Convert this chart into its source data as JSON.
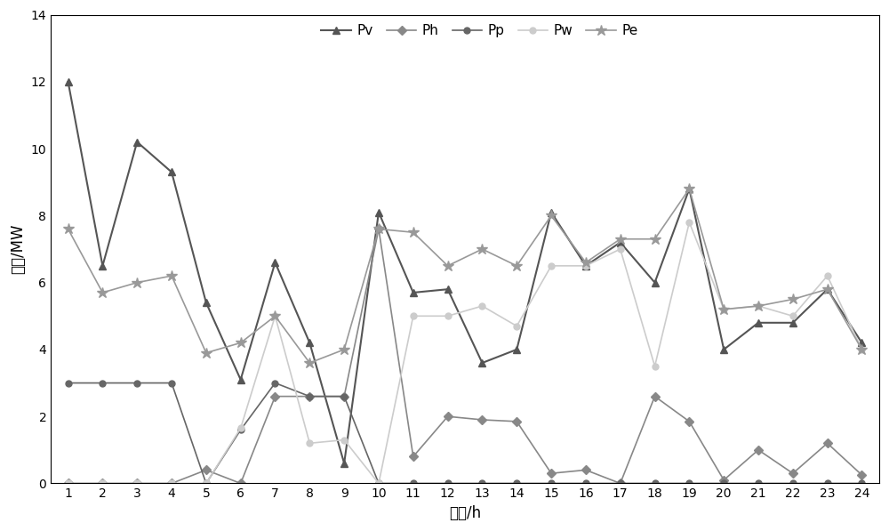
{
  "x": [
    1,
    2,
    3,
    4,
    5,
    6,
    7,
    8,
    9,
    10,
    11,
    12,
    13,
    14,
    15,
    16,
    17,
    18,
    19,
    20,
    21,
    22,
    23,
    24
  ],
  "Pv": [
    12.0,
    6.5,
    10.2,
    9.3,
    5.4,
    3.1,
    6.6,
    4.2,
    0.6,
    8.1,
    5.7,
    5.8,
    3.6,
    4.0,
    8.1,
    6.5,
    7.2,
    6.0,
    8.8,
    4.0,
    4.8,
    4.8,
    5.8,
    4.2
  ],
  "Ph": [
    0.0,
    0.0,
    0.0,
    0.0,
    0.4,
    0.0,
    2.6,
    2.6,
    2.6,
    7.6,
    0.8,
    2.0,
    1.9,
    1.85,
    0.3,
    0.4,
    0.0,
    2.6,
    1.85,
    0.1,
    1.0,
    0.3,
    1.2,
    0.25
  ],
  "Pp": [
    3.0,
    3.0,
    3.0,
    3.0,
    0.0,
    1.6,
    3.0,
    2.6,
    2.6,
    0.0,
    0.0,
    0.0,
    0.0,
    0.0,
    0.0,
    0.0,
    0.0,
    0.0,
    0.0,
    0.0,
    0.0,
    0.0,
    0.0,
    0.0
  ],
  "Pw": [
    0.0,
    0.0,
    0.0,
    0.0,
    0.0,
    1.65,
    5.0,
    1.2,
    1.3,
    0.0,
    5.0,
    5.0,
    5.3,
    4.7,
    6.5,
    6.5,
    7.0,
    3.5,
    7.8,
    5.2,
    5.3,
    5.0,
    6.2,
    4.0
  ],
  "Pe": [
    7.6,
    5.7,
    6.0,
    6.2,
    3.9,
    4.2,
    5.0,
    3.6,
    4.0,
    7.6,
    7.5,
    6.5,
    7.0,
    6.5,
    8.0,
    6.6,
    7.3,
    7.3,
    8.8,
    5.2,
    5.3,
    5.5,
    5.8,
    4.0
  ],
  "ylabel": "功率/MW",
  "xlabel": "时间/h",
  "ylim": [
    0,
    14
  ],
  "yticks": [
    0,
    2,
    4,
    6,
    8,
    10,
    12,
    14
  ],
  "series_colors": {
    "Pv": "#555555",
    "Ph": "#888888",
    "Pp": "#666666",
    "Pw": "#cccccc",
    "Pe": "#999999"
  },
  "series_markers": {
    "Pv": "^",
    "Ph": "D",
    "Pp": "o",
    "Pw": "o",
    "Pe": "*"
  },
  "series_markersizes": {
    "Pv": 6,
    "Ph": 5,
    "Pp": 5,
    "Pw": 5,
    "Pe": 9
  },
  "series_linewidths": {
    "Pv": 1.5,
    "Ph": 1.2,
    "Pp": 1.2,
    "Pw": 1.2,
    "Pe": 1.2
  },
  "series_order": [
    "Pv",
    "Ph",
    "Pp",
    "Pw",
    "Pe"
  ]
}
